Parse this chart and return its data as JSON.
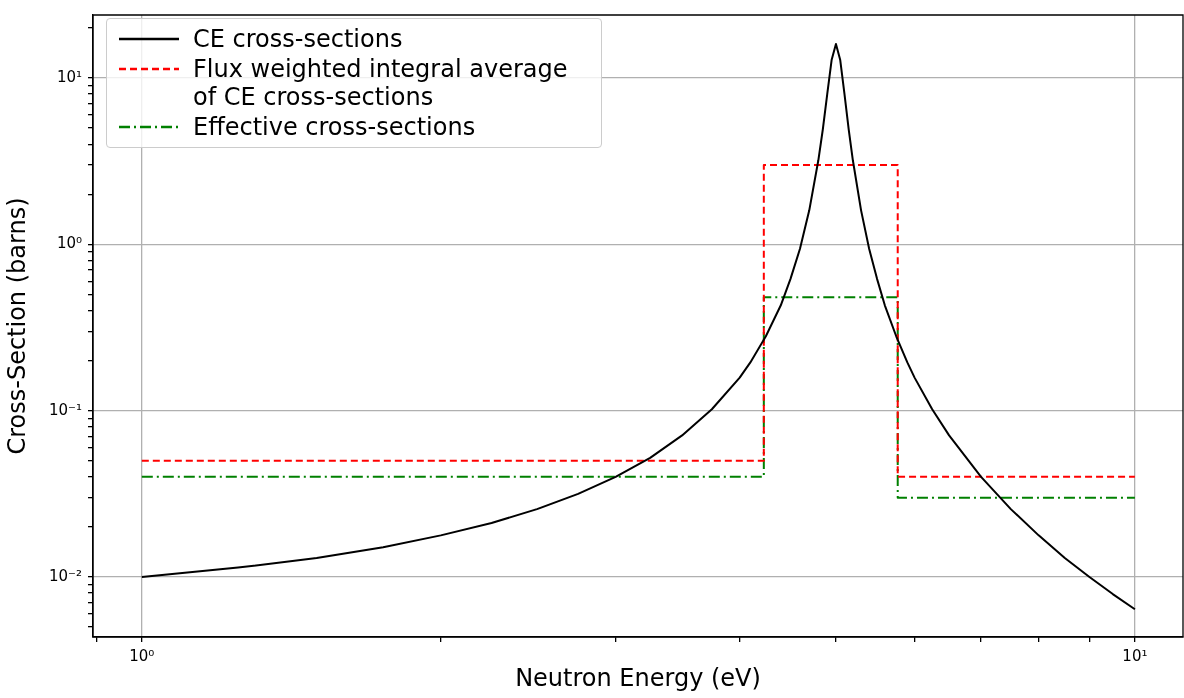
{
  "chart_data": {
    "type": "line",
    "xlabel": "Neutron Energy (eV)",
    "ylabel": "Cross-Section (barns)",
    "log": "xy",
    "grid": true,
    "legend": "top left",
    "marker": "none",
    "xlim": [
      0.893,
      11.18
    ],
    "ylim": [
      0.00436,
      23.9
    ],
    "xticks": [
      {
        "value": 0.9,
        "label": null
      },
      {
        "value": 1,
        "label": "10⁰"
      },
      {
        "value": 2,
        "label": null
      },
      {
        "value": 3,
        "label": null
      },
      {
        "value": 4,
        "label": null
      },
      {
        "value": 5,
        "label": null
      },
      {
        "value": 6,
        "label": null
      },
      {
        "value": 7,
        "label": null
      },
      {
        "value": 8,
        "label": null
      },
      {
        "value": 9,
        "label": null
      },
      {
        "value": 10,
        "label": "10¹"
      }
    ],
    "yticks": [
      {
        "value": 0.005,
        "label": null
      },
      {
        "value": 0.006,
        "label": null
      },
      {
        "value": 0.007,
        "label": null
      },
      {
        "value": 0.008,
        "label": null
      },
      {
        "value": 0.009,
        "label": null
      },
      {
        "value": 0.01,
        "label": "10⁻²"
      },
      {
        "value": 0.02,
        "label": null
      },
      {
        "value": 0.03,
        "label": null
      },
      {
        "value": 0.04,
        "label": null
      },
      {
        "value": 0.05,
        "label": null
      },
      {
        "value": 0.06,
        "label": null
      },
      {
        "value": 0.07,
        "label": null
      },
      {
        "value": 0.08,
        "label": null
      },
      {
        "value": 0.09,
        "label": null
      },
      {
        "value": 0.1,
        "label": "10⁻¹"
      },
      {
        "value": 0.2,
        "label": null
      },
      {
        "value": 0.3,
        "label": null
      },
      {
        "value": 0.4,
        "label": null
      },
      {
        "value": 0.5,
        "label": null
      },
      {
        "value": 0.6,
        "label": null
      },
      {
        "value": 0.7,
        "label": null
      },
      {
        "value": 0.8,
        "label": null
      },
      {
        "value": 0.9,
        "label": null
      },
      {
        "value": 1,
        "label": "10⁰"
      },
      {
        "value": 2,
        "label": null
      },
      {
        "value": 3,
        "label": null
      },
      {
        "value": 4,
        "label": null
      },
      {
        "value": 5,
        "label": null
      },
      {
        "value": 6,
        "label": null
      },
      {
        "value": 7,
        "label": null
      },
      {
        "value": 8,
        "label": null
      },
      {
        "value": 9,
        "label": null
      },
      {
        "value": 10,
        "label": "10¹"
      },
      {
        "value": 20,
        "label": null
      }
    ],
    "series": [
      {
        "name": "CE cross-sections",
        "color": "#000000",
        "line_style": "solid",
        "x": [
          1,
          1.25,
          1.5,
          1.75,
          2,
          2.25,
          2.5,
          2.75,
          3,
          3.25,
          3.5,
          3.75,
          4,
          4.1,
          4.25,
          4.4,
          4.5,
          4.6,
          4.7,
          4.8,
          4.85,
          4.9,
          4.95,
          5,
          5.05,
          5.1,
          5.15,
          5.2,
          5.3,
          5.4,
          5.5,
          5.6,
          5.75,
          5.9,
          6,
          6.25,
          6.5,
          7,
          7.5,
          8,
          8.5,
          9,
          9.5,
          10
        ],
        "values": [
          0.01,
          0.0114,
          0.013,
          0.0151,
          0.0178,
          0.0211,
          0.0256,
          0.0316,
          0.04,
          0.052,
          0.071,
          0.102,
          0.158,
          0.195,
          0.28,
          0.43,
          0.62,
          0.94,
          1.6,
          3.2,
          4.9,
          8,
          12.8,
          16,
          12.8,
          8,
          4.9,
          3.2,
          1.6,
          0.94,
          0.62,
          0.43,
          0.28,
          0.195,
          0.158,
          0.102,
          0.071,
          0.04,
          0.0256,
          0.0178,
          0.013,
          0.01,
          0.0079,
          0.0064
        ]
      },
      {
        "name": "Flux weighted integral average of CE cross-sections",
        "type": "step",
        "color": "#ff0000",
        "line_style": "dashed",
        "x": [
          1,
          4.23,
          5.77,
          10
        ],
        "values": [
          0.05,
          3,
          0.04,
          0.04
        ]
      },
      {
        "name": "Effective cross-sections",
        "type": "step",
        "color": "#008000",
        "line_style": "dashdot",
        "x": [
          1,
          4.23,
          5.77,
          10
        ],
        "values": [
          0.04,
          0.48,
          0.03,
          0.03
        ]
      }
    ]
  }
}
